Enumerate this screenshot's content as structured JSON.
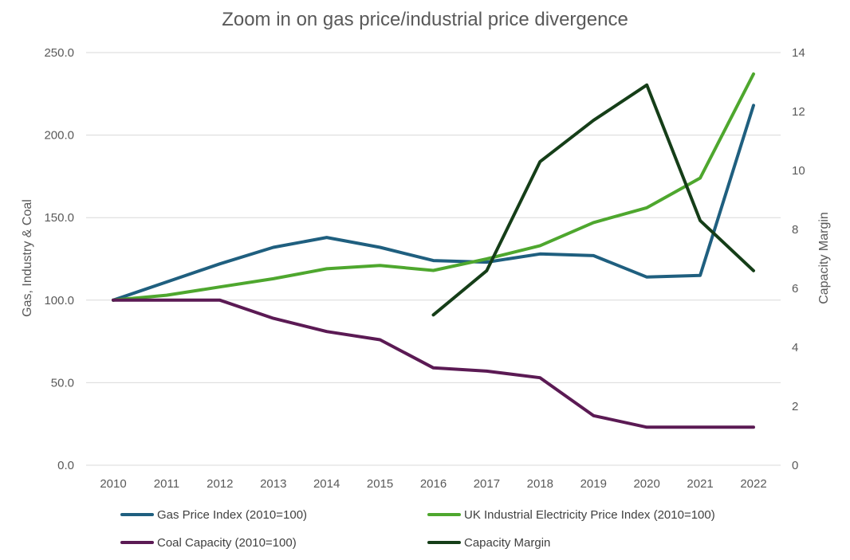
{
  "chart_data": {
    "type": "line",
    "title": "Zoom in on gas price/industrial price divergence",
    "x": [
      "2010",
      "2011",
      "2012",
      "2013",
      "2014",
      "2015",
      "2016",
      "2017",
      "2018",
      "2019",
      "2020",
      "2021",
      "2022"
    ],
    "y_left": {
      "label": "Gas, Industry & Coal",
      "range": [
        0,
        250
      ],
      "ticks": [
        "0.0",
        "50.0",
        "100.0",
        "150.0",
        "200.0",
        "250.0"
      ]
    },
    "y_right": {
      "label": "Capacity Margin",
      "range": [
        0,
        14
      ],
      "ticks": [
        "0",
        "2",
        "4",
        "6",
        "8",
        "10",
        "12",
        "14"
      ]
    },
    "grid": true,
    "legend_position": "bottom",
    "series": [
      {
        "name": "Gas Price Index (2010=100)",
        "color": "#1f5f7f",
        "axis": "left",
        "values": [
          100,
          111,
          122,
          132,
          138,
          132,
          124,
          123,
          128,
          127,
          114,
          115,
          218
        ]
      },
      {
        "name": "UK Industrial Electricity Price Index (2010=100)",
        "color": "#4ea72e",
        "axis": "left",
        "values": [
          100,
          103,
          108,
          113,
          119,
          121,
          118,
          125,
          133,
          147,
          156,
          174,
          237
        ]
      },
      {
        "name": "Coal Capacity (2010=100)",
        "color": "#5b1a54",
        "axis": "left",
        "values": [
          100,
          100,
          100,
          89,
          81,
          76,
          59,
          57,
          53,
          30,
          23,
          23,
          23
        ]
      },
      {
        "name": "Capacity Margin",
        "color": "#153e18",
        "axis": "right",
        "values": [
          null,
          null,
          null,
          null,
          null,
          null,
          5.1,
          6.6,
          10.3,
          11.7,
          12.9,
          8.3,
          6.6
        ]
      }
    ]
  }
}
